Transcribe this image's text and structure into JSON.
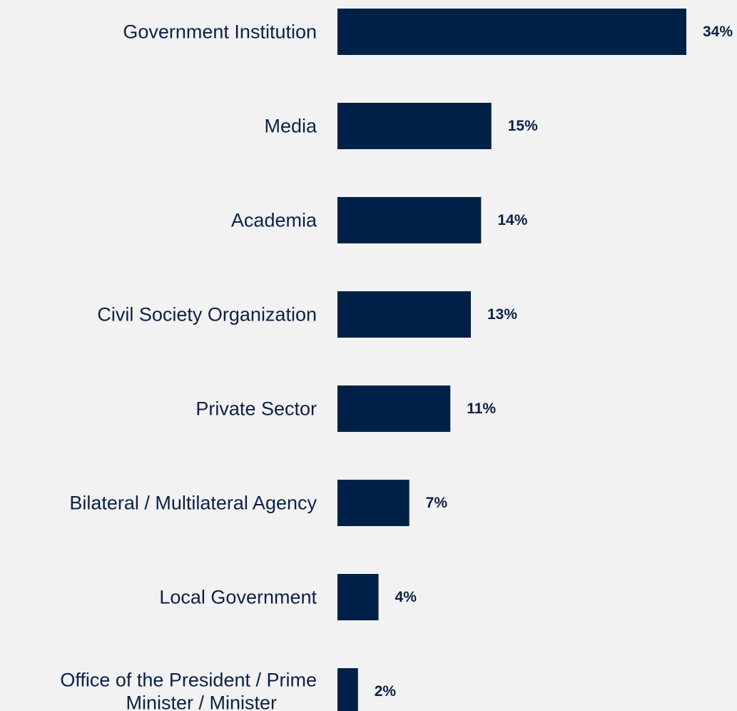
{
  "chart_data": {
    "type": "bar",
    "orientation": "horizontal",
    "categories": [
      "Government Institution",
      "Media",
      "Academia",
      "Civil Society Organization",
      "Private Sector",
      "Bilateral / Multilateral Agency",
      "Local Government",
      "Office of the President / Prime Minister / Minister"
    ],
    "category_lines": [
      [
        "Government Institution"
      ],
      [
        "Media"
      ],
      [
        "Academia"
      ],
      [
        "Civil Society Organization"
      ],
      [
        "Private Sector"
      ],
      [
        "Bilateral / Multilateral Agency"
      ],
      [
        "Local Government"
      ],
      [
        "Office of the President / Prime",
        "Minister / Minister"
      ]
    ],
    "values": [
      34,
      15,
      14,
      13,
      11,
      7,
      4,
      2
    ],
    "value_labels": [
      "34%",
      "15%",
      "14%",
      "13%",
      "11%",
      "7%",
      "4%",
      "2%"
    ],
    "unit": "%",
    "xlim": [
      0,
      34
    ],
    "grid": false,
    "legend": "none",
    "colors": {
      "bar": "#002147",
      "label": "#0b2146",
      "background": "#f2f2f2"
    }
  }
}
